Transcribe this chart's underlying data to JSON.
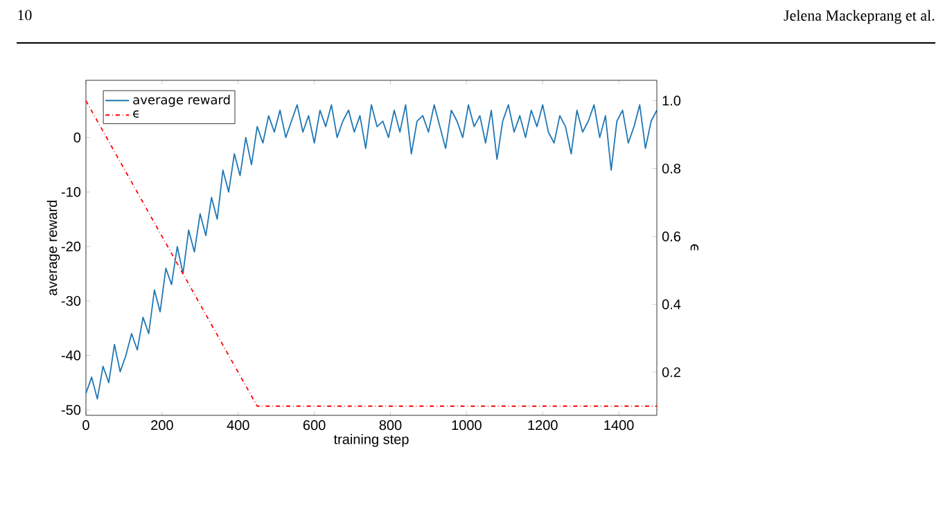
{
  "chart_data": {
    "type": "line",
    "annotations": [
      "10",
      "Jelena Mackeprang et al."
    ],
    "xlabel": "training step",
    "ylabel": "average reward",
    "y2label": "ϵ",
    "xlim": [
      0,
      1500
    ],
    "xticks": [
      0,
      200,
      400,
      600,
      800,
      1000,
      1200,
      1400
    ],
    "ylim": [
      -51,
      10.5
    ],
    "yticks": [
      -50,
      -40,
      -30,
      -20,
      -10,
      0
    ],
    "y2lim": [
      0.073,
      1.06
    ],
    "y2ticks": [
      0.2,
      0.4,
      0.6,
      0.8,
      {
        "value": 1,
        "label": "1.0"
      }
    ],
    "legend": "top left",
    "grid": false,
    "marker": "none",
    "series": [
      {
        "name": "average reward",
        "color": "#1f77b4",
        "line_style": "solid",
        "x": [
          0,
          15,
          30,
          45,
          60,
          75,
          90,
          105,
          120,
          135,
          150,
          165,
          180,
          195,
          210,
          225,
          240,
          255,
          270,
          285,
          300,
          315,
          330,
          345,
          360,
          375,
          390,
          405,
          420,
          435,
          450,
          465,
          480,
          495,
          510,
          525,
          540,
          555,
          570,
          585,
          600,
          615,
          630,
          645,
          660,
          675,
          690,
          705,
          720,
          735,
          750,
          765,
          780,
          795,
          810,
          825,
          840,
          855,
          870,
          885,
          900,
          915,
          930,
          945,
          960,
          975,
          990,
          1005,
          1020,
          1035,
          1050,
          1065,
          1080,
          1095,
          1110,
          1125,
          1140,
          1155,
          1170,
          1185,
          1200,
          1215,
          1230,
          1245,
          1260,
          1275,
          1290,
          1305,
          1320,
          1335,
          1350,
          1365,
          1380,
          1395,
          1410,
          1425,
          1440,
          1455,
          1470,
          1485,
          1500
        ],
        "values": [
          -47,
          -44,
          -48,
          -42,
          -45,
          -38,
          -43,
          -40,
          -36,
          -39,
          -33,
          -36,
          -28,
          -32,
          -24,
          -27,
          -20,
          -25,
          -17,
          -21,
          -14,
          -18,
          -11,
          -15,
          -6,
          -10,
          -3,
          -7,
          0,
          -5,
          2,
          -1,
          4,
          1,
          5,
          0,
          3,
          6,
          1,
          4,
          -1,
          5,
          2,
          6,
          0,
          3,
          5,
          1,
          4,
          -2,
          6,
          2,
          3,
          0,
          5,
          1,
          6,
          -3,
          3,
          4,
          1,
          6,
          2,
          -2,
          5,
          3,
          0,
          6,
          2,
          4,
          -1,
          5,
          -4,
          3,
          6,
          1,
          4,
          0,
          5,
          2,
          6,
          1,
          -1,
          4,
          2,
          -3,
          5,
          1,
          3,
          6,
          0,
          4,
          -6,
          3,
          5,
          -1,
          2,
          6,
          -2,
          3,
          5
        ]
      },
      {
        "name": "ϵ",
        "color": "#ff0000",
        "line_style": "dashdot",
        "axis": "y2",
        "x": [
          0,
          450,
          1500
        ],
        "values": [
          1.0,
          0.1,
          0.1
        ]
      }
    ]
  }
}
